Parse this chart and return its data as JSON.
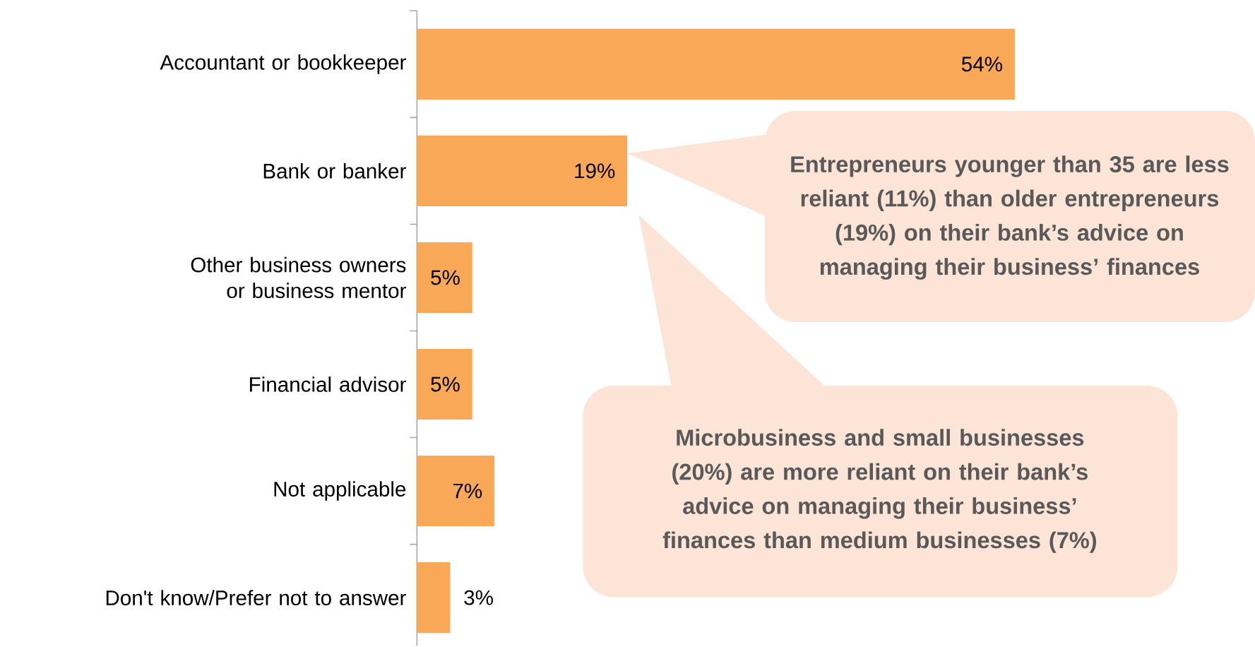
{
  "chart_data": {
    "type": "bar",
    "orientation": "horizontal",
    "categories": [
      "Accountant or bookkeeper",
      "Bank or banker",
      "Other business owners or business mentor",
      "Financial advisor",
      "Not applicable",
      "Don't know/Prefer not to answer"
    ],
    "values": [
      54,
      19,
      5,
      5,
      7,
      3
    ],
    "value_labels": [
      "54%",
      "19%",
      "5%",
      "5%",
      "7%",
      "3%"
    ],
    "color": "#f9a857",
    "annotations": [
      "Entrepreneurs younger than 35 are less reliant (11%) than older entrepreneurs (19%) on their bank’s advice on managing their business’ finances",
      "Microbusiness and small businesses (20%) are more reliant on their bank’s advice on managing their business’ finances than medium businesses (7%)"
    ]
  }
}
